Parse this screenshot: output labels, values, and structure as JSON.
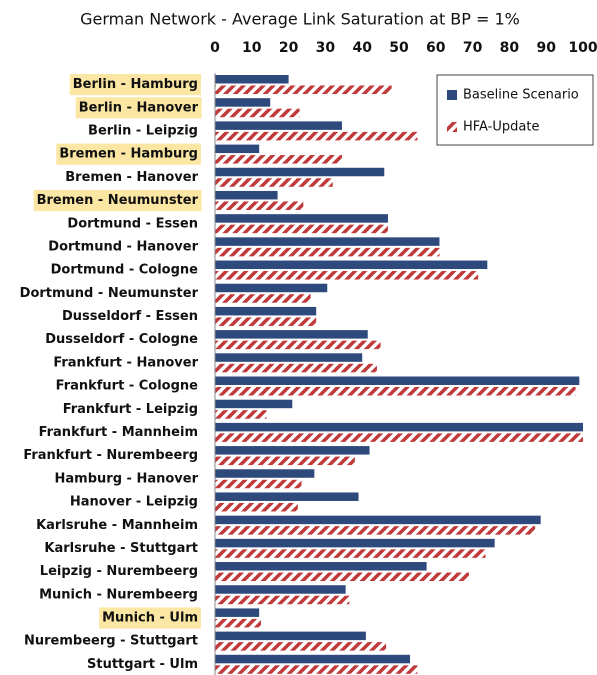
{
  "chart_data": {
    "type": "hbar",
    "title": "German  Network - Average Link Saturation at BP = 1%",
    "categories": [
      "Berlin - Hamburg",
      "Berlin - Hanover",
      "Berlin - Leipzig",
      "Bremen - Hamburg",
      "Bremen - Hanover",
      "Bremen - Neumunster",
      "Dortmund - Essen",
      "Dortmund - Hanover",
      "Dortmund - Cologne",
      "Dortmund - Neumunster",
      "Dusseldorf - Essen",
      "Dusseldorf - Cologne",
      "Frankfurt - Hanover",
      "Frankfurt - Cologne",
      "Frankfurt - Leipzig",
      "Frankfurt - Mannheim",
      "Frankfurt - Nurembeerg",
      "Hamburg - Hanover",
      "Hanover - Leipzig",
      "Karlsruhe - Mannheim",
      "Karlsruhe - Stuttgart",
      "Leipzig - Nurembeerg",
      "Munich - Nurembeerg",
      "Munich - Ulm",
      "Nurembeerg - Stuttgart",
      "Stuttgart - Ulm"
    ],
    "highlight": [
      true,
      true,
      false,
      true,
      false,
      true,
      false,
      false,
      false,
      false,
      false,
      false,
      false,
      false,
      false,
      false,
      false,
      false,
      false,
      false,
      false,
      false,
      false,
      true,
      false,
      false
    ],
    "highlight_color": "#fbe7a3",
    "series": [
      {
        "name": "Baseline Scenario",
        "color": "#2e4a7d",
        "pattern": "solid",
        "values": [
          20,
          15,
          34.5,
          12,
          46,
          17,
          47,
          61,
          74,
          30.5,
          27.5,
          41.5,
          40,
          99,
          21,
          100,
          42,
          27,
          39,
          88.5,
          76,
          57.5,
          35.5,
          12,
          41,
          53
        ]
      },
      {
        "name": "HFA-Update",
        "color": "#c0393b",
        "pattern": "hatch",
        "values": [
          48,
          23,
          55,
          34.5,
          32,
          24,
          47,
          61,
          71.5,
          26,
          27.5,
          45,
          44,
          98,
          14,
          100,
          38,
          23.5,
          22.5,
          87,
          73.5,
          69,
          36.5,
          12.5,
          46.5,
          55
        ]
      }
    ],
    "xlim": [
      0,
      100
    ],
    "xticks": [
      0,
      10,
      20,
      30,
      40,
      50,
      60,
      70,
      80,
      90,
      100
    ],
    "grid": false,
    "legend": "top-right"
  }
}
